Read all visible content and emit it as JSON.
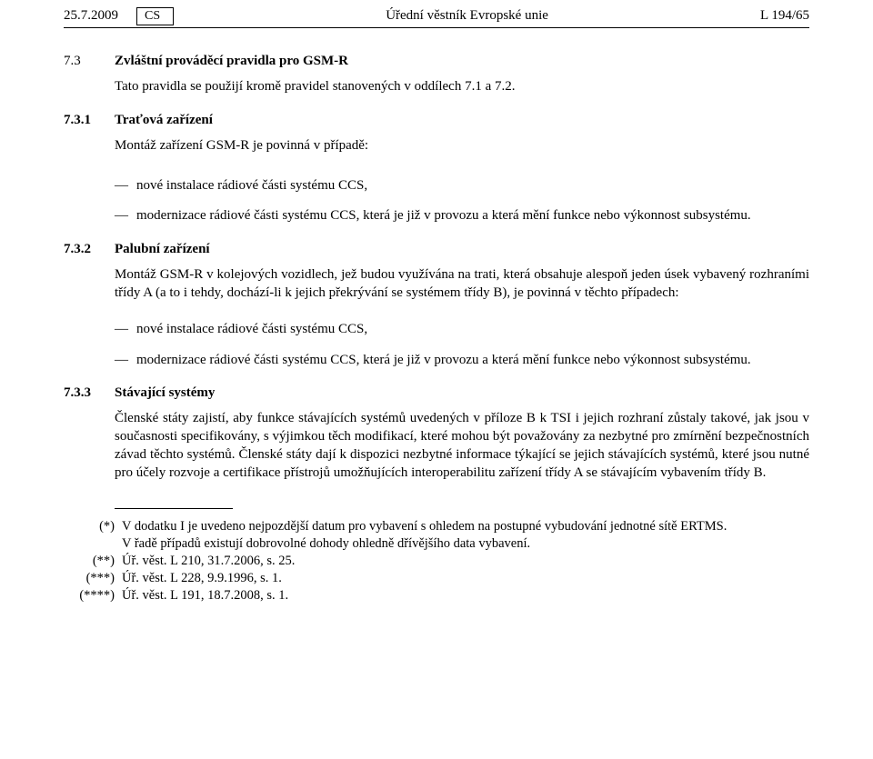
{
  "header": {
    "date": "25.7.2009",
    "lang": "CS",
    "center": "Úřední věstník Evropské unie",
    "right": "L 194/65"
  },
  "sec73": {
    "num": "7.3",
    "title": "Zvláštní prováděcí pravidla pro GSM-R",
    "intro": "Tato pravidla se použijí kromě pravidel stanovených v oddílech 7.1 a 7.2."
  },
  "sec731": {
    "num": "7.3.1",
    "title": "Traťová zařízení",
    "lead": "Montáž zařízení GSM-R je povinná v případě:",
    "items": [
      "nové instalace rádiové části systému CCS,",
      "modernizace rádiové části systému CCS, která je již v provozu a která mění funkce nebo výkonnost subsystému."
    ]
  },
  "sec732": {
    "num": "7.3.2",
    "title": "Palubní zařízení",
    "lead": "Montáž GSM-R v kolejových vozidlech, jež budou využívána na trati, která obsahuje alespoň jeden úsek vybavený rozhraními třídy A (a to i tehdy, dochází-li k jejich překrývání se systémem třídy B), je povinná v těchto případech:",
    "items": [
      "nové instalace rádiové části systému CCS,",
      "modernizace rádiové části systému CCS, která je již v provozu a která mění funkce nebo výkonnost subsystému."
    ]
  },
  "sec733": {
    "num": "7.3.3",
    "title": "Stávající systémy",
    "body": "Členské státy zajistí, aby funkce stávajících systémů uvedených v příloze B k TSI i jejich rozhraní zůstaly takové, jak jsou v současnosti specifikovány, s výjimkou těch modifikací, které mohou být považovány za nezbytné pro zmírnění bezpečnostních závad těchto systémů. Členské státy dají k dispozici nezbytné informace týkající se jejich stávajících systémů, které jsou nutné pro účely rozvoje a certifikace přístrojů umožňujících interoperabilitu zařízení třídy A se stávajícím vybavením třídy B."
  },
  "footnotes": {
    "f1": {
      "mark": "(*)",
      "text1": "V dodatku I je uvedeno nejpozdější datum pro vybavení s ohledem na postupné vybudování jednotné sítě ERTMS.",
      "text2": "V řadě případů existují dobrovolné dohody ohledně dřívějšího data vybavení."
    },
    "f2": {
      "mark": "(**)",
      "text": "Úř. věst. L 210, 31.7.2006, s. 25."
    },
    "f3": {
      "mark": "(***)",
      "text": "Úř. věst. L 228, 9.9.1996, s. 1."
    },
    "f4": {
      "mark": "(****)",
      "text": "Úř. věst. L 191, 18.7.2008, s. 1."
    }
  }
}
